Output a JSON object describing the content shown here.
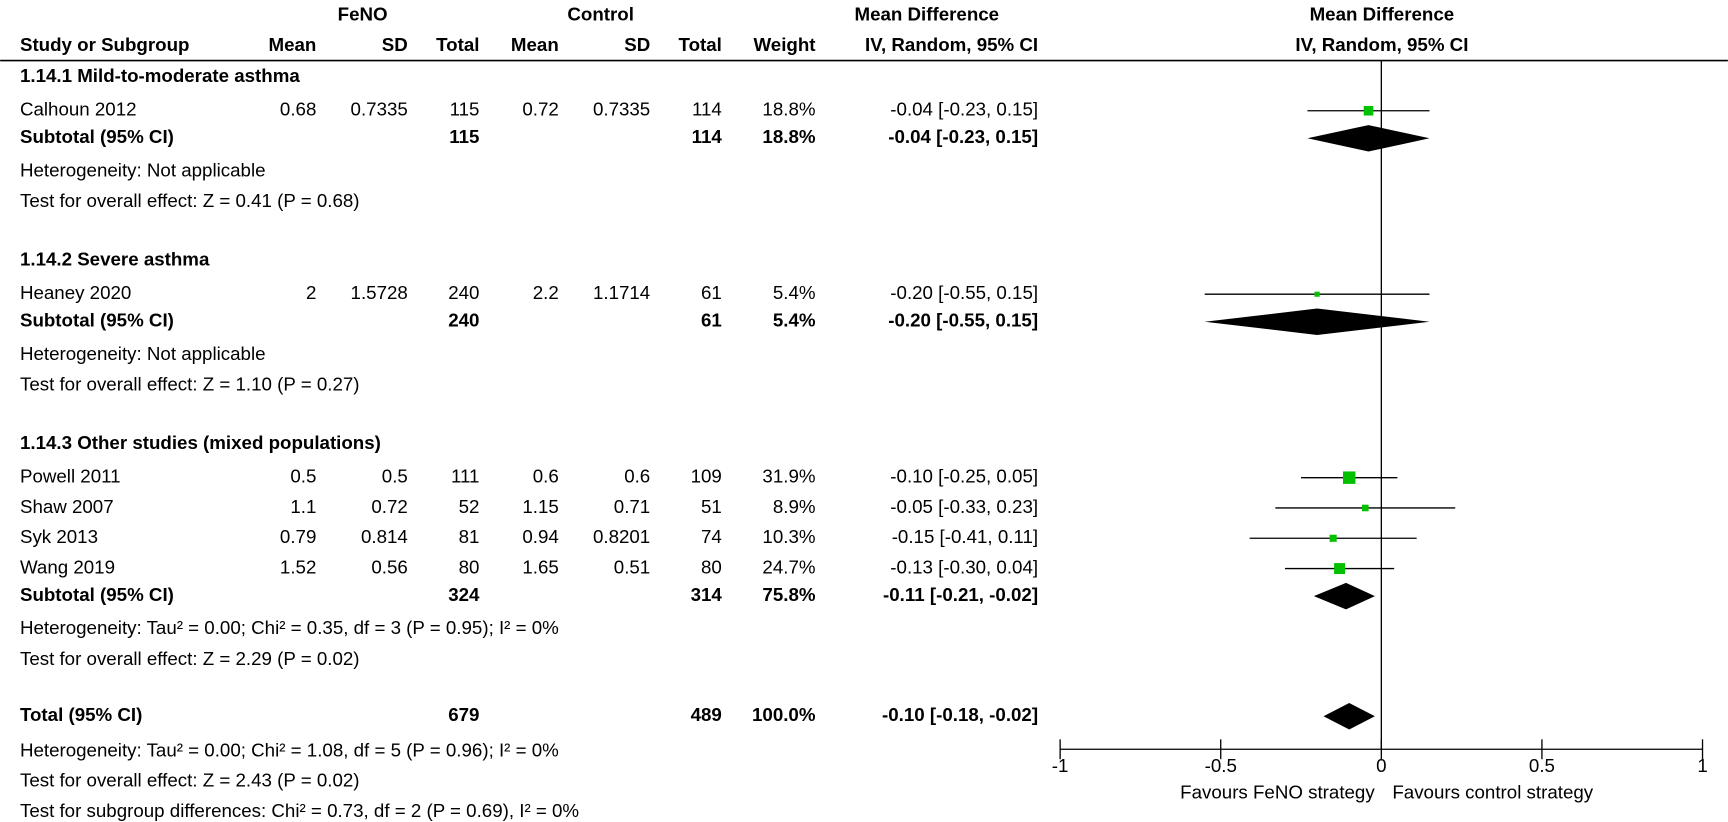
{
  "header": {
    "experimental": "FeNO",
    "control": "Control",
    "effect": "Mean Difference",
    "columns": [
      "Study or Subgroup",
      "Mean",
      "SD",
      "Total",
      "Mean",
      "SD",
      "Total",
      "Weight",
      "IV, Random, 95% CI"
    ]
  },
  "chart_data": {
    "type": "forest",
    "title": "Mean Difference",
    "subtitle": "IV, Random, 95% CI",
    "xlim": [
      -1,
      1
    ],
    "xticks": [
      -1,
      -0.5,
      0,
      0.5,
      1
    ],
    "label_left": "Favours FeNO strategy",
    "label_right": "Favours control strategy",
    "color": "#00c000",
    "groups": [
      {
        "name": "1.14.1 Mild-to-moderate asthma",
        "studies": [
          {
            "name": "Calhoun 2012",
            "mean_1": 0.68,
            "sd_1": 0.7335,
            "total_1": 115,
            "mean_2": 0.72,
            "sd_2": 0.7335,
            "total_2": 114,
            "weight": 18.8,
            "weight_label": "18.8%",
            "md": -0.04,
            "ci": [
              -0.23,
              0.15
            ],
            "ci_label": "-0.04 [-0.23, 0.15]"
          }
        ],
        "subtotal": {
          "name": "Subtotal (95% CI)",
          "total_1": 115,
          "total_2": 114,
          "weight": 18.8,
          "weight_label": "18.8%",
          "md": -0.04,
          "ci": [
            -0.23,
            0.15
          ],
          "ci_label": "-0.04 [-0.23, 0.15]"
        },
        "notes": [
          "Heterogeneity: Not applicable",
          "Test for overall effect: Z = 0.41 (P = 0.68)"
        ]
      },
      {
        "name": "1.14.2 Severe asthma",
        "studies": [
          {
            "name": "Heaney 2020",
            "mean_1": 2,
            "sd_1": 1.5728,
            "total_1": 240,
            "mean_2": 2.2,
            "sd_2": 1.1714,
            "total_2": 61,
            "weight": 5.4,
            "weight_label": "5.4%",
            "md": -0.2,
            "ci": [
              -0.55,
              0.15
            ],
            "ci_label": "-0.20 [-0.55, 0.15]"
          }
        ],
        "subtotal": {
          "name": "Subtotal (95% CI)",
          "total_1": 240,
          "total_2": 61,
          "weight": 5.4,
          "weight_label": "5.4%",
          "md": -0.2,
          "ci": [
            -0.55,
            0.15
          ],
          "ci_label": "-0.20 [-0.55, 0.15]"
        },
        "notes": [
          "Heterogeneity: Not applicable",
          "Test for overall effect: Z = 1.10 (P = 0.27)"
        ]
      },
      {
        "name": "1.14.3 Other studies (mixed populations)",
        "studies": [
          {
            "name": "Powell 2011",
            "mean_1": 0.5,
            "sd_1": 0.5,
            "total_1": 111,
            "mean_2": 0.6,
            "sd_2": 0.6,
            "total_2": 109,
            "weight": 31.9,
            "weight_label": "31.9%",
            "md": -0.1,
            "ci": [
              -0.25,
              0.05
            ],
            "ci_label": "-0.10 [-0.25, 0.05]"
          },
          {
            "name": "Shaw 2007",
            "mean_1": 1.1,
            "sd_1": 0.72,
            "total_1": 52,
            "mean_2": 1.15,
            "sd_2": 0.71,
            "total_2": 51,
            "weight": 8.9,
            "weight_label": "8.9%",
            "md": -0.05,
            "ci": [
              -0.33,
              0.23
            ],
            "ci_label": "-0.05 [-0.33, 0.23]"
          },
          {
            "name": "Syk 2013",
            "mean_1": 0.79,
            "sd_1": 0.814,
            "total_1": 81,
            "mean_2": 0.94,
            "sd_2": 0.8201,
            "total_2": 74,
            "weight": 10.3,
            "weight_label": "10.3%",
            "md": -0.15,
            "ci": [
              -0.41,
              0.11
            ],
            "ci_label": "-0.15 [-0.41, 0.11]"
          },
          {
            "name": "Wang 2019",
            "mean_1": 1.52,
            "sd_1": 0.56,
            "total_1": 80,
            "mean_2": 1.65,
            "sd_2": 0.51,
            "total_2": 80,
            "weight": 24.7,
            "weight_label": "24.7%",
            "md": -0.13,
            "ci": [
              -0.3,
              0.04
            ],
            "ci_label": "-0.13 [-0.30, 0.04]"
          }
        ],
        "subtotal": {
          "name": "Subtotal (95% CI)",
          "total_1": 324,
          "total_2": 314,
          "weight": 75.8,
          "weight_label": "75.8%",
          "md": -0.11,
          "ci": [
            -0.21,
            -0.02
          ],
          "ci_label": "-0.11 [-0.21, -0.02]"
        },
        "notes": [
          "Heterogeneity: Tau² = 0.00; Chi² = 0.35, df = 3 (P = 0.95); I² = 0%",
          "Test for overall effect: Z = 2.29 (P = 0.02)"
        ]
      }
    ],
    "total": {
      "name": "Total (95% CI)",
      "total_1": 679,
      "total_2": 489,
      "weight": 100,
      "weight_label": "100.0%",
      "md": -0.1,
      "ci": [
        -0.18,
        -0.02
      ],
      "ci_label": "-0.10 [-0.18, -0.02]",
      "notes": [
        "Heterogeneity: Tau² = 0.00; Chi² = 1.08, df = 5 (P = 0.96); I² = 0%",
        "Test for overall effect: Z = 2.43 (P = 0.02)",
        "Test for subgroup differences: Chi² = 0.73, df = 2 (P = 0.69), I² = 0%"
      ]
    }
  }
}
